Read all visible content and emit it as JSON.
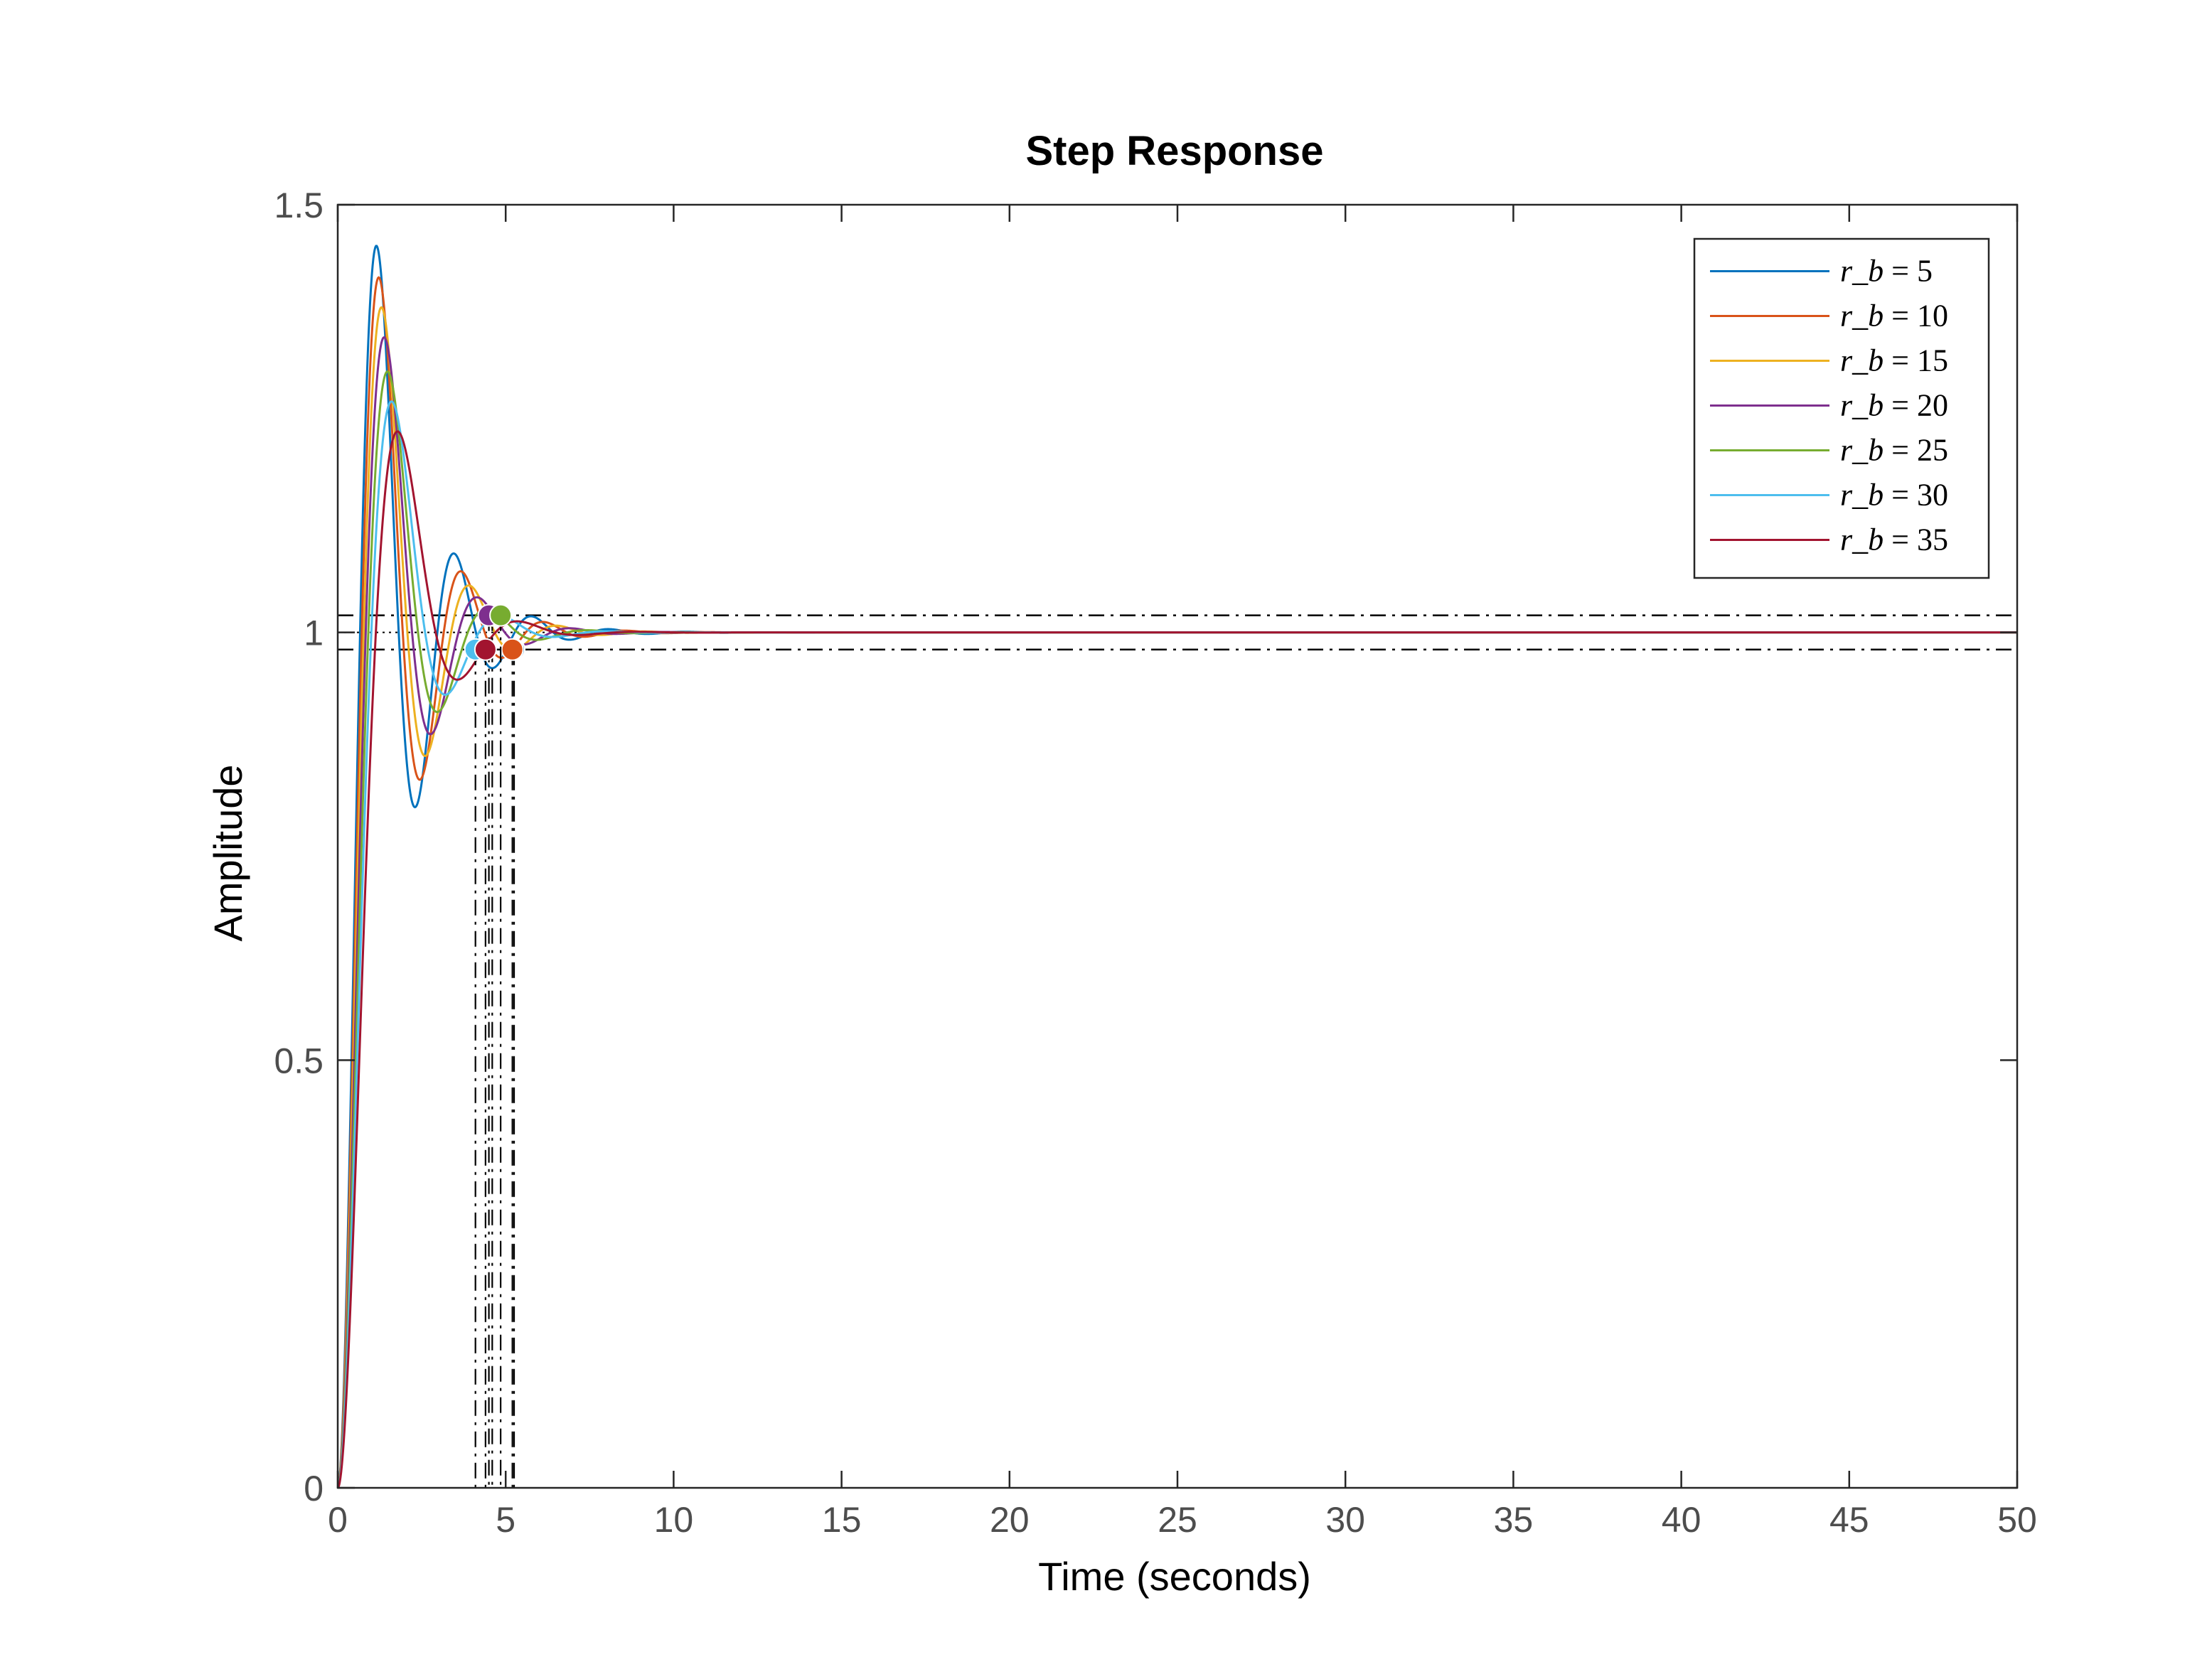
{
  "chart_data": {
    "type": "line",
    "title": "Step Response",
    "xlabel": "Time (seconds)",
    "ylabel": "Amplitude",
    "xlim": [
      0,
      50
    ],
    "ylim": [
      0,
      1.5
    ],
    "xticks": [
      0,
      5,
      10,
      15,
      20,
      25,
      30,
      35,
      40,
      45,
      50
    ],
    "yticks": [
      0,
      0.5,
      1,
      1.5
    ],
    "xtick_labels": [
      "0",
      "5",
      "10",
      "15",
      "20",
      "25",
      "30",
      "35",
      "40",
      "45",
      "50"
    ],
    "ytick_labels": [
      "0",
      "0.5",
      "1",
      "1.5"
    ],
    "grid": false,
    "legend_position": "top-right",
    "steady_state": 1,
    "settling_band": [
      0.98,
      1.02
    ],
    "series": [
      {
        "name": "r_b = 5",
        "legend": {
          "var": "r_b",
          "op": "=",
          "val": "5"
        },
        "color": "#0072BD",
        "peak_time": 1.15,
        "peak": 1.452,
        "settling_time": 5.25
      },
      {
        "name": "r_b = 10",
        "legend": {
          "var": "r_b",
          "op": "=",
          "val": "10"
        },
        "color": "#D95319",
        "peak_time": 1.22,
        "peak": 1.415,
        "settling_time": 5.2
      },
      {
        "name": "r_b = 15",
        "legend": {
          "var": "r_b",
          "op": "=",
          "val": "15"
        },
        "color": "#EDB120",
        "peak_time": 1.3,
        "peak": 1.38,
        "settling_time": 4.6
      },
      {
        "name": "r_b = 20",
        "legend": {
          "var": "r_b",
          "op": "=",
          "val": "20"
        },
        "color": "#7E2F8E",
        "peak_time": 1.38,
        "peak": 1.345,
        "settling_time": 4.5
      },
      {
        "name": "r_b = 25",
        "legend": {
          "var": "r_b",
          "op": "=",
          "val": "25"
        },
        "color": "#77AC30",
        "peak_time": 1.48,
        "peak": 1.305,
        "settling_time": 4.85
      },
      {
        "name": "r_b = 30",
        "legend": {
          "var": "r_b",
          "op": "=",
          "val": "30"
        },
        "color": "#4DBEEE",
        "peak_time": 1.6,
        "peak": 1.27,
        "settling_time": 4.1
      },
      {
        "name": "r_b = 35",
        "legend": {
          "var": "r_b",
          "op": "=",
          "val": "35"
        },
        "color": "#A2142F",
        "peak_time": 1.78,
        "peak": 1.235,
        "settling_time": 4.4
      }
    ]
  }
}
